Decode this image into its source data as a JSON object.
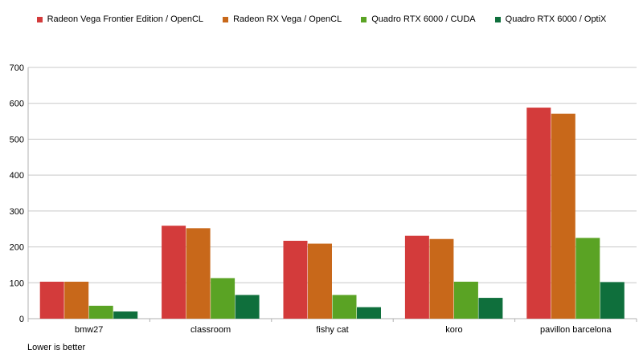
{
  "chart_data": {
    "type": "bar",
    "categories": [
      "bmw27",
      "classroom",
      "fishy cat",
      "koro",
      "pavillon barcelona"
    ],
    "series": [
      {
        "name": "Radeon Vega Frontier Edition / OpenCL",
        "color": "#d33b3b",
        "values": [
          103,
          259,
          217,
          231,
          588
        ]
      },
      {
        "name": "Radeon RX Vega / OpenCL",
        "color": "#c8681a",
        "values": [
          103,
          252,
          209,
          222,
          571
        ]
      },
      {
        "name": "Quadro RTX 6000 / CUDA",
        "color": "#5aa324",
        "values": [
          36,
          113,
          66,
          103,
          225
        ]
      },
      {
        "name": "Quadro RTX 6000 / OptiX",
        "color": "#0f6f3c",
        "values": [
          20,
          66,
          32,
          58,
          102
        ]
      }
    ],
    "yticks": [
      0,
      100,
      200,
      300,
      400,
      500,
      600,
      700
    ],
    "ylim": [
      0,
      700
    ],
    "grid": true,
    "legend": "top-center"
  },
  "note": "Lower is better"
}
